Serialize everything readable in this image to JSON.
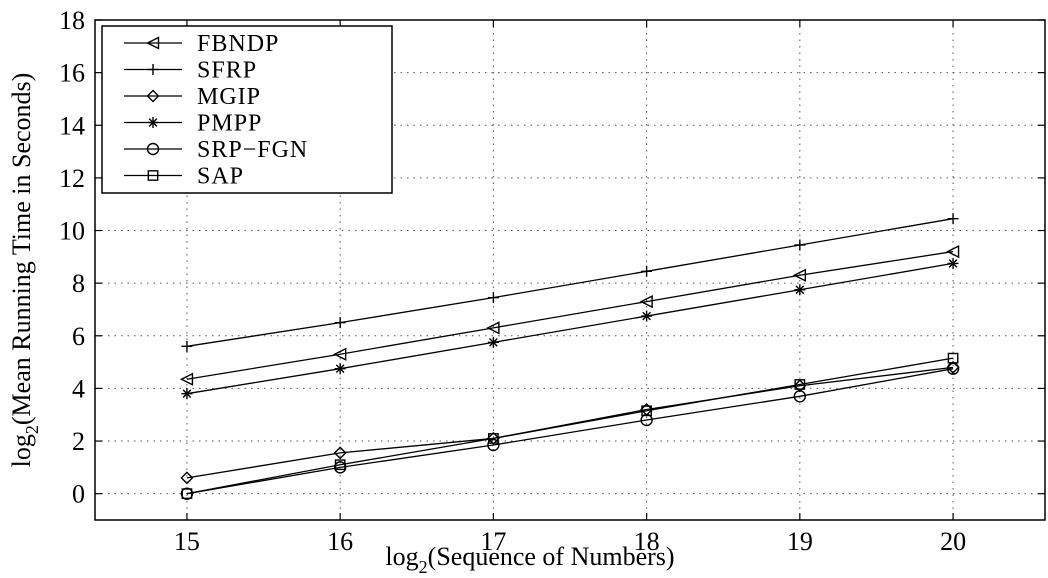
{
  "chart_data": {
    "type": "line",
    "xlabel": "log",
    "xlabel_sub": "2",
    "xlabel_rest": "(Sequence of Numbers)",
    "ylabel": "log",
    "ylabel_sub": "2",
    "ylabel_rest": "(Mean Running Time in Seconds)",
    "xlim": [
      14.4,
      20.6
    ],
    "ylim": [
      -1,
      18
    ],
    "x_ticks": [
      15,
      16,
      17,
      18,
      19,
      20
    ],
    "y_ticks": [
      0,
      2,
      4,
      6,
      8,
      10,
      12,
      14,
      16,
      18
    ],
    "grid": true,
    "legend_position": "top-left",
    "x": [
      15,
      16,
      17,
      18,
      19,
      20
    ],
    "series": [
      {
        "name": "FBNDP",
        "marker": "triangle-left",
        "values": [
          4.35,
          5.3,
          6.3,
          7.3,
          8.3,
          9.2
        ]
      },
      {
        "name": "SFRP",
        "marker": "plus",
        "values": [
          5.6,
          6.5,
          7.45,
          8.45,
          9.45,
          10.45
        ]
      },
      {
        "name": "MGIP",
        "marker": "diamond",
        "values": [
          0.6,
          1.55,
          2.1,
          3.2,
          4.1,
          4.8
        ]
      },
      {
        "name": "PMPP",
        "marker": "star",
        "values": [
          3.8,
          4.75,
          5.75,
          6.75,
          7.75,
          8.75
        ]
      },
      {
        "name": "SRP−FGN",
        "marker": "circle",
        "values": [
          0.0,
          1.0,
          1.85,
          2.8,
          3.7,
          4.75
        ]
      },
      {
        "name": "SAP",
        "marker": "square",
        "values": [
          0.0,
          1.1,
          2.1,
          3.15,
          4.15,
          5.15
        ]
      }
    ]
  }
}
